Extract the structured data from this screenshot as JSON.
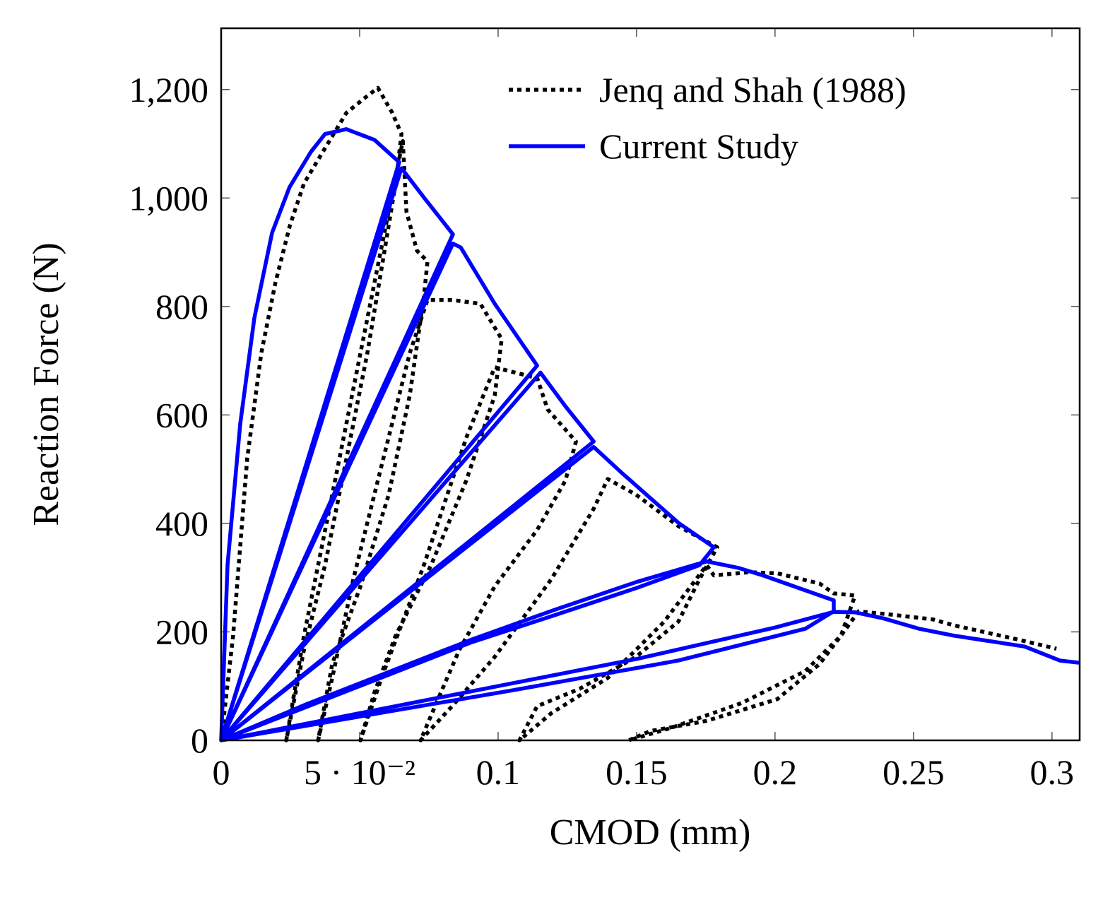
{
  "chart_data": {
    "type": "line",
    "x_label": "CMOD (mm)",
    "y_label": "Reaction Force (N)",
    "xlim": [
      0,
      0.31
    ],
    "ylim": [
      0,
      1313
    ],
    "xticks": [
      0,
      {
        "value": 0.05,
        "label": "5 · 10⁻²"
      },
      0.1,
      0.15,
      0.2,
      0.25,
      0.3
    ],
    "yticks": [
      0,
      200,
      400,
      600,
      800,
      {
        "value": 1000,
        "label": "1,000"
      },
      {
        "value": 1200,
        "label": "1,200"
      }
    ],
    "grid": false,
    "legend": "upper right",
    "series": [
      {
        "name": "Jenq and Shah (1988)",
        "color": "#000000",
        "style": "dotted",
        "x": [
          0,
          0.0043,
          0.0094,
          0.0145,
          0.0196,
          0.0248,
          0.0299,
          0.0375,
          0.0452,
          0.0515,
          0.0566,
          0.0618,
          0.0651,
          0.063,
          0.0592,
          0.0528,
          0.0452,
          0.0375,
          0.0299,
          0.0235,
          0.0299,
          0.0401,
          0.0503,
          0.0579,
          0.063,
          0.0656,
          0.0669,
          0.0707,
          0.0745,
          0.0732,
          0.0681,
          0.0605,
          0.0503,
          0.0401,
          0.035,
          0.0401,
          0.0477,
          0.0579,
          0.0681,
          0.0745,
          0.0834,
          0.0936,
          0.1013,
          0.0988,
          0.0885,
          0.0758,
          0.063,
          0.0554,
          0.0503,
          0.0579,
          0.0732,
          0.0885,
          0.0988,
          0.1039,
          0.1141,
          0.1179,
          0.1281,
          0.1243,
          0.1141,
          0.0988,
          0.086,
          0.0783,
          0.072,
          0.0834,
          0.0988,
          0.1192,
          0.1345,
          0.1396,
          0.1498,
          0.1651,
          0.1791,
          0.1727,
          0.1651,
          0.1498,
          0.1294,
          0.1141,
          0.1077,
          0.1192,
          0.1396,
          0.16,
          0.1753,
          0.1779,
          0.1906,
          0.2008,
          0.2161,
          0.2212,
          0.2289,
          0.2238,
          0.2161,
          0.2008,
          0.1753,
          0.1549,
          0.1472,
          0.1625,
          0.1881,
          0.211,
          0.2238,
          0.2302,
          0.2416,
          0.257,
          0.2646,
          0.2876,
          0.3016
        ],
        "values": [
          0,
          193,
          519,
          714,
          844,
          949,
          1027,
          1092,
          1157,
          1183,
          1203,
          1157,
          1118,
          1027,
          909,
          714,
          519,
          323,
          167,
          0,
          193,
          453,
          714,
          909,
          1040,
          1105,
          975,
          903,
          883,
          818,
          636,
          453,
          284,
          141,
          0,
          115,
          297,
          506,
          714,
          812,
          812,
          805,
          740,
          636,
          479,
          323,
          193,
          89,
          0,
          115,
          323,
          558,
          688,
          681,
          668,
          610,
          551,
          479,
          388,
          284,
          167,
          76,
          0,
          63,
          154,
          297,
          427,
          482,
          453,
          395,
          356,
          297,
          219,
          154,
          95,
          63,
          0,
          50,
          115,
          219,
          323,
          304,
          310,
          308,
          289,
          271,
          267,
          193,
          141,
          76,
          36,
          17,
          0,
          23,
          69,
          128,
          193,
          238,
          232,
          223,
          212,
          186,
          169
        ]
      },
      {
        "name": "Current Study",
        "color": "#0000ff",
        "style": "solid",
        "x": [
          0,
          0.0023,
          0.0069,
          0.012,
          0.0184,
          0.0247,
          0.0324,
          0.0375,
          0.0452,
          0.0554,
          0.0643,
          0,
          0.0651,
          0.0732,
          0.0837,
          0,
          0.0837,
          0.0865,
          0.0988,
          0.1141,
          0,
          0.1153,
          0.1243,
          0.1345,
          0,
          0.1345,
          0.1447,
          0.1549,
          0.1651,
          0.1779,
          0.1727,
          0.15,
          0.12,
          0.09,
          0.06,
          0.03,
          0,
          0.03,
          0.06,
          0.09,
          0.12,
          0.15,
          0.1753,
          0.1868,
          0.1957,
          0.2212,
          0.2212,
          0.211,
          0.165,
          0.1039,
          0.0592,
          0,
          0.04,
          0.1,
          0.15,
          0.2,
          0.2212,
          0.2289,
          0.2391,
          0.2519,
          0.2646,
          0.2901,
          0.3029,
          0.31
        ],
        "values": [
          0,
          323,
          584,
          779,
          936,
          1020,
          1085,
          1118,
          1127,
          1107,
          1066,
          0,
          1055,
          1001,
          933,
          0,
          916,
          909,
          805,
          691,
          0,
          678,
          616,
          551,
          0,
          541,
          493,
          447,
          401,
          356,
          323,
          281,
          230,
          180,
          120,
          60,
          0,
          65,
          125,
          185,
          240,
          292,
          330,
          318,
          304,
          258,
          238,
          206,
          147,
          91,
          52,
          0,
          40,
          100,
          150,
          208,
          237,
          236,
          225,
          206,
          193,
          173,
          147,
          143
        ]
      }
    ]
  }
}
